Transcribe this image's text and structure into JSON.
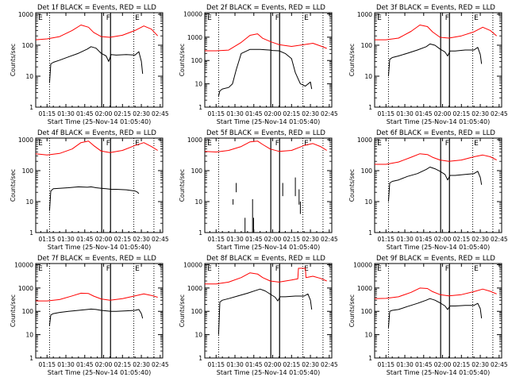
{
  "chart_data": {
    "type": "line",
    "panel_count": 9,
    "shared": {
      "xlabel": "Start Time (25-Nov-14 01:05:40)",
      "ylabel": "Counts/sec",
      "x_ticks": [
        "01:15",
        "01:30",
        "01:45",
        "02:00",
        "02:15",
        "02:30",
        "02:45"
      ],
      "x_tick_minutes": [
        75,
        90,
        105,
        120,
        135,
        150,
        165
      ],
      "xlim_minutes": [
        66,
        167
      ],
      "y_scale": "log",
      "markers": [
        {
          "label": "E",
          "minutes": 68
        },
        {
          "label": "F",
          "minutes": 122
        },
        {
          "label": "E",
          "minutes": 145
        }
      ],
      "dotted_lines_minutes": [
        77,
        144,
        160
      ],
      "interval_lines_minutes": [
        118.5,
        125.5
      ],
      "series_colors": {
        "events": "#000000",
        "lld": "#ff0000"
      }
    },
    "panels": [
      {
        "title": "Det 1f BLACK = Events, RED = LLD",
        "y_ticks": [
          "1",
          "10",
          "100",
          "1000"
        ],
        "ylim_log": [
          0,
          3.05
        ],
        "series": [
          {
            "color": "#ff0000",
            "x": [
              66,
              75,
              85,
              95,
              102,
              108,
              112,
              118,
              125,
              135,
              145,
              152,
              158,
              163
            ],
            "y": [
              150,
              160,
              190,
              300,
              450,
              380,
              260,
              190,
              180,
              210,
              300,
              420,
              330,
              200
            ]
          },
          {
            "color": "#000000",
            "x": [
              77,
              78,
              80,
              85,
              92,
              100,
              107,
              110,
              114,
              118,
              122,
              124,
              126,
              130,
              138,
              145,
              148,
              150,
              151
            ],
            "y": [
              6,
              25,
              28,
              33,
              42,
              55,
              75,
              90,
              80,
              55,
              45,
              30,
              50,
              48,
              50,
              48,
              62,
              30,
              12
            ]
          }
        ]
      },
      {
        "title": "Det 2f BLACK = Events, RED = LLD",
        "y_ticks": [
          "1",
          "10",
          "100",
          "1000",
          "10000"
        ],
        "ylim_log": [
          0,
          4.05
        ],
        "series": [
          {
            "color": "#ff0000",
            "x": [
              66,
              75,
              85,
              95,
              102,
              108,
              112,
              118,
              125,
              135,
              145,
              152,
              158,
              163
            ],
            "y": [
              260,
              260,
              280,
              600,
              1200,
              1400,
              900,
              650,
              480,
              400,
              480,
              550,
              420,
              330
            ]
          },
          {
            "color": "#000000",
            "x": [
              77,
              78,
              80,
              85,
              88,
              91,
              95,
              102,
              110,
              118,
              120,
              125,
              130,
              135,
              138,
              142,
              146,
              150,
              151
            ],
            "y": [
              3,
              5,
              6,
              7,
              10,
              40,
              200,
              300,
              300,
              280,
              270,
              260,
              200,
              120,
              30,
              10,
              8,
              12,
              6
            ]
          }
        ]
      },
      {
        "title": "Det 3f BLACK = Events, RED = LLD",
        "y_ticks": [
          "1",
          "10",
          "100",
          "1000"
        ],
        "ylim_log": [
          0,
          3.05
        ],
        "series": [
          {
            "color": "#ff0000",
            "x": [
              66,
              75,
              85,
              95,
              102,
              108,
              112,
              118,
              125,
              135,
              145,
              152,
              158,
              163
            ],
            "y": [
              150,
              150,
              170,
              280,
              450,
              400,
              270,
              180,
              170,
              200,
              270,
              380,
              300,
              200
            ]
          },
          {
            "color": "#000000",
            "x": [
              77,
              78,
              80,
              85,
              92,
              100,
              107,
              110,
              114,
              118,
              122,
              124,
              126,
              130,
              138,
              145,
              148,
              150,
              151
            ],
            "y": [
              10,
              35,
              40,
              45,
              55,
              70,
              90,
              110,
              100,
              75,
              60,
              45,
              65,
              65,
              70,
              70,
              85,
              50,
              25
            ]
          }
        ]
      },
      {
        "title": "Det 4f BLACK = Events, RED = LLD",
        "y_ticks": [
          "1",
          "10",
          "100",
          "1000"
        ],
        "ylim_log": [
          0,
          3.05
        ],
        "series": [
          {
            "color": "#ff0000",
            "x": [
              66,
              75,
              85,
              95,
              102,
              108,
              112,
              118,
              125,
              135,
              145,
              152,
              158,
              163
            ],
            "y": [
              350,
              320,
              360,
              500,
              800,
              900,
              650,
              430,
              380,
              450,
              650,
              800,
              600,
              450
            ]
          },
          {
            "color": "#000000",
            "x": [
              77,
              78,
              80,
              85,
              92,
              100,
              107,
              110,
              114,
              118,
              122,
              126,
              130,
              138,
              145,
              147,
              148
            ],
            "y": [
              5,
              22,
              26,
              27,
              28,
              30,
              29,
              30,
              28,
              27,
              26,
              25,
              25,
              24,
              22,
              20,
              18
            ]
          }
        ]
      },
      {
        "title": "Det 5f BLACK = Events, RED = LLD",
        "y_ticks": [
          "1",
          "10",
          "100",
          "1000"
        ],
        "ylim_log": [
          0,
          3.05
        ],
        "series": [
          {
            "color": "#ff0000",
            "x": [
              66,
              75,
              85,
              95,
              102,
              108,
              112,
              118,
              125,
              135,
              145,
              152,
              158,
              163
            ],
            "y": [
              420,
              400,
              450,
              600,
              850,
              900,
              700,
              500,
              420,
              450,
              650,
              750,
              600,
              450
            ]
          },
          {
            "color": "#000000",
            "x": [
              91,
              91
            ],
            "y": [
              40,
              20
            ]
          },
          {
            "color": "#000000",
            "x": [
              88.5,
              88.5
            ],
            "y": [
              12,
              8
            ]
          },
          {
            "color": "#000000",
            "x": [
              98,
              98
            ],
            "y": [
              1,
              3
            ]
          },
          {
            "color": "#000000",
            "x": [
              104,
              104
            ],
            "y": [
              1,
              12
            ]
          },
          {
            "color": "#000000",
            "x": [
              104.8,
              104.8
            ],
            "y": [
              1,
              3
            ]
          },
          {
            "color": "#000000",
            "x": [
              128,
              128
            ],
            "y": [
              40,
              15
            ]
          },
          {
            "color": "#000000",
            "x": [
              138,
              138
            ],
            "y": [
              60,
              15
            ]
          },
          {
            "color": "#000000",
            "x": [
              141,
              141
            ],
            "y": [
              25,
              8
            ]
          },
          {
            "color": "#000000",
            "x": [
              142,
              142
            ],
            "y": [
              10,
              4
            ]
          }
        ]
      },
      {
        "title": "Det 6f BLACK = Events, RED = LLD",
        "y_ticks": [
          "1",
          "10",
          "100",
          "1000"
        ],
        "ylim_log": [
          0,
          3.05
        ],
        "series": [
          {
            "color": "#ff0000",
            "x": [
              66,
              75,
              85,
              95,
              102,
              108,
              112,
              118,
              125,
              135,
              145,
              152,
              158,
              163
            ],
            "y": [
              160,
              160,
              190,
              270,
              350,
              330,
              270,
              220,
              200,
              220,
              280,
              320,
              280,
              220
            ]
          },
          {
            "color": "#000000",
            "x": [
              77,
              78,
              80,
              85,
              92,
              100,
              107,
              110,
              114,
              118,
              122,
              124,
              126,
              130,
              138,
              145,
              148,
              150,
              151
            ],
            "y": [
              10,
              40,
              45,
              50,
              65,
              80,
              110,
              130,
              115,
              95,
              75,
              50,
              70,
              70,
              75,
              80,
              95,
              60,
              35
            ]
          }
        ]
      },
      {
        "title": "Det 7f BLACK = Events, RED = LLD",
        "y_ticks": [
          "1",
          "10",
          "100",
          "1000",
          "10000"
        ],
        "ylim_log": [
          0,
          4.05
        ],
        "series": [
          {
            "color": "#ff0000",
            "x": [
              66,
              75,
              85,
              95,
              102,
              108,
              112,
              118,
              125,
              135,
              145,
              152,
              158,
              163
            ],
            "y": [
              280,
              280,
              320,
              460,
              600,
              580,
              450,
              340,
              300,
              350,
              460,
              560,
              480,
              400
            ]
          },
          {
            "color": "#000000",
            "x": [
              77,
              78,
              80,
              85,
              92,
              100,
              107,
              110,
              114,
              118,
              122,
              126,
              130,
              138,
              145,
              148,
              150,
              151
            ],
            "y": [
              25,
              70,
              80,
              90,
              100,
              110,
              120,
              125,
              120,
              110,
              105,
              100,
              100,
              105,
              110,
              120,
              80,
              50
            ]
          }
        ]
      },
      {
        "title": "Det 8f BLACK = Events, RED = LLD",
        "y_ticks": [
          "1",
          "10",
          "100",
          "1000",
          "10000"
        ],
        "ylim_log": [
          0,
          4.05
        ],
        "series": [
          {
            "color": "#ff0000",
            "x": [
              66,
              75,
              85,
              95,
              102,
              108,
              112,
              118,
              125,
              135,
              140,
              140.5,
              143,
              146,
              146.5,
              152,
              158,
              163
            ],
            "y": [
              1500,
              1500,
              1800,
              2800,
              4500,
              4000,
              2800,
              2000,
              1800,
              2200,
              2500,
              7000,
              7000,
              7000,
              2800,
              3200,
              2600,
              2000
            ]
          },
          {
            "color": "#000000",
            "x": [
              77,
              78,
              80,
              85,
              92,
              100,
              107,
              110,
              114,
              118,
              122,
              124,
              126,
              130,
              138,
              145,
              148,
              150,
              151
            ],
            "y": [
              10,
              250,
              300,
              350,
              450,
              600,
              800,
              900,
              750,
              550,
              400,
              280,
              420,
              420,
              450,
              450,
              560,
              300,
              120
            ]
          }
        ]
      },
      {
        "title": "Det 9f BLACK = Events, RED = LLD",
        "y_ticks": [
          "1",
          "10",
          "100",
          "1000",
          "10000"
        ],
        "ylim_log": [
          0,
          4.05
        ],
        "series": [
          {
            "color": "#ff0000",
            "x": [
              66,
              75,
              85,
              95,
              102,
              108,
              112,
              118,
              125,
              135,
              145,
              152,
              158,
              163
            ],
            "y": [
              350,
              360,
              420,
              650,
              1000,
              950,
              700,
              520,
              460,
              520,
              700,
              900,
              720,
              560
            ]
          },
          {
            "color": "#000000",
            "x": [
              77,
              78,
              80,
              85,
              92,
              100,
              107,
              110,
              114,
              118,
              122,
              124,
              126,
              130,
              138,
              145,
              148,
              150,
              151
            ],
            "y": [
              20,
              100,
              110,
              120,
              160,
              220,
              300,
              350,
              300,
              230,
              170,
              120,
              170,
              170,
              180,
              180,
              220,
              130,
              50
            ]
          }
        ]
      }
    ]
  }
}
